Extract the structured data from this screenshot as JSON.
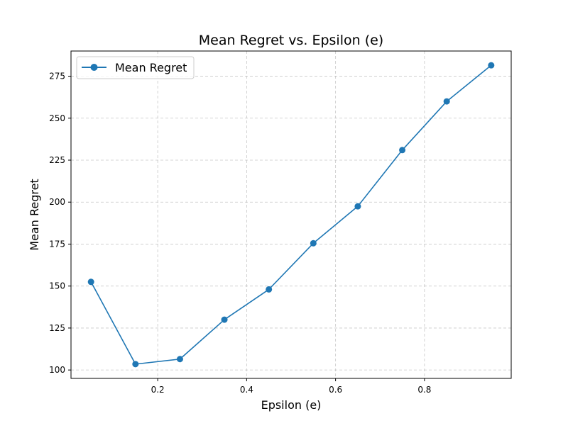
{
  "chart_data": {
    "type": "line",
    "title": "Mean Regret vs. Epsilon (e)",
    "xlabel": "Epsilon (e)",
    "ylabel": "Mean Regret",
    "xlim": [
      0.005,
      0.995
    ],
    "ylim": [
      95,
      290
    ],
    "xticks": [
      0.2,
      0.4,
      0.6,
      0.8
    ],
    "xtick_labels": [
      "0.2",
      "0.4",
      "0.6",
      "0.8"
    ],
    "yticks": [
      100,
      125,
      150,
      175,
      200,
      225,
      250,
      275
    ],
    "ytick_labels": [
      "100",
      "125",
      "150",
      "175",
      "200",
      "225",
      "250",
      "275"
    ],
    "grid": true,
    "legend_position": "top-left",
    "series": [
      {
        "name": "Mean Regret",
        "color": "#1f77b4",
        "marker": "circle",
        "x": [
          0.05,
          0.15,
          0.25,
          0.35,
          0.45,
          0.55,
          0.65,
          0.75,
          0.85,
          0.95
        ],
        "y": [
          152.5,
          103.5,
          106.5,
          130.0,
          148.0,
          175.5,
          197.5,
          231.0,
          260.0,
          281.5
        ]
      }
    ]
  }
}
